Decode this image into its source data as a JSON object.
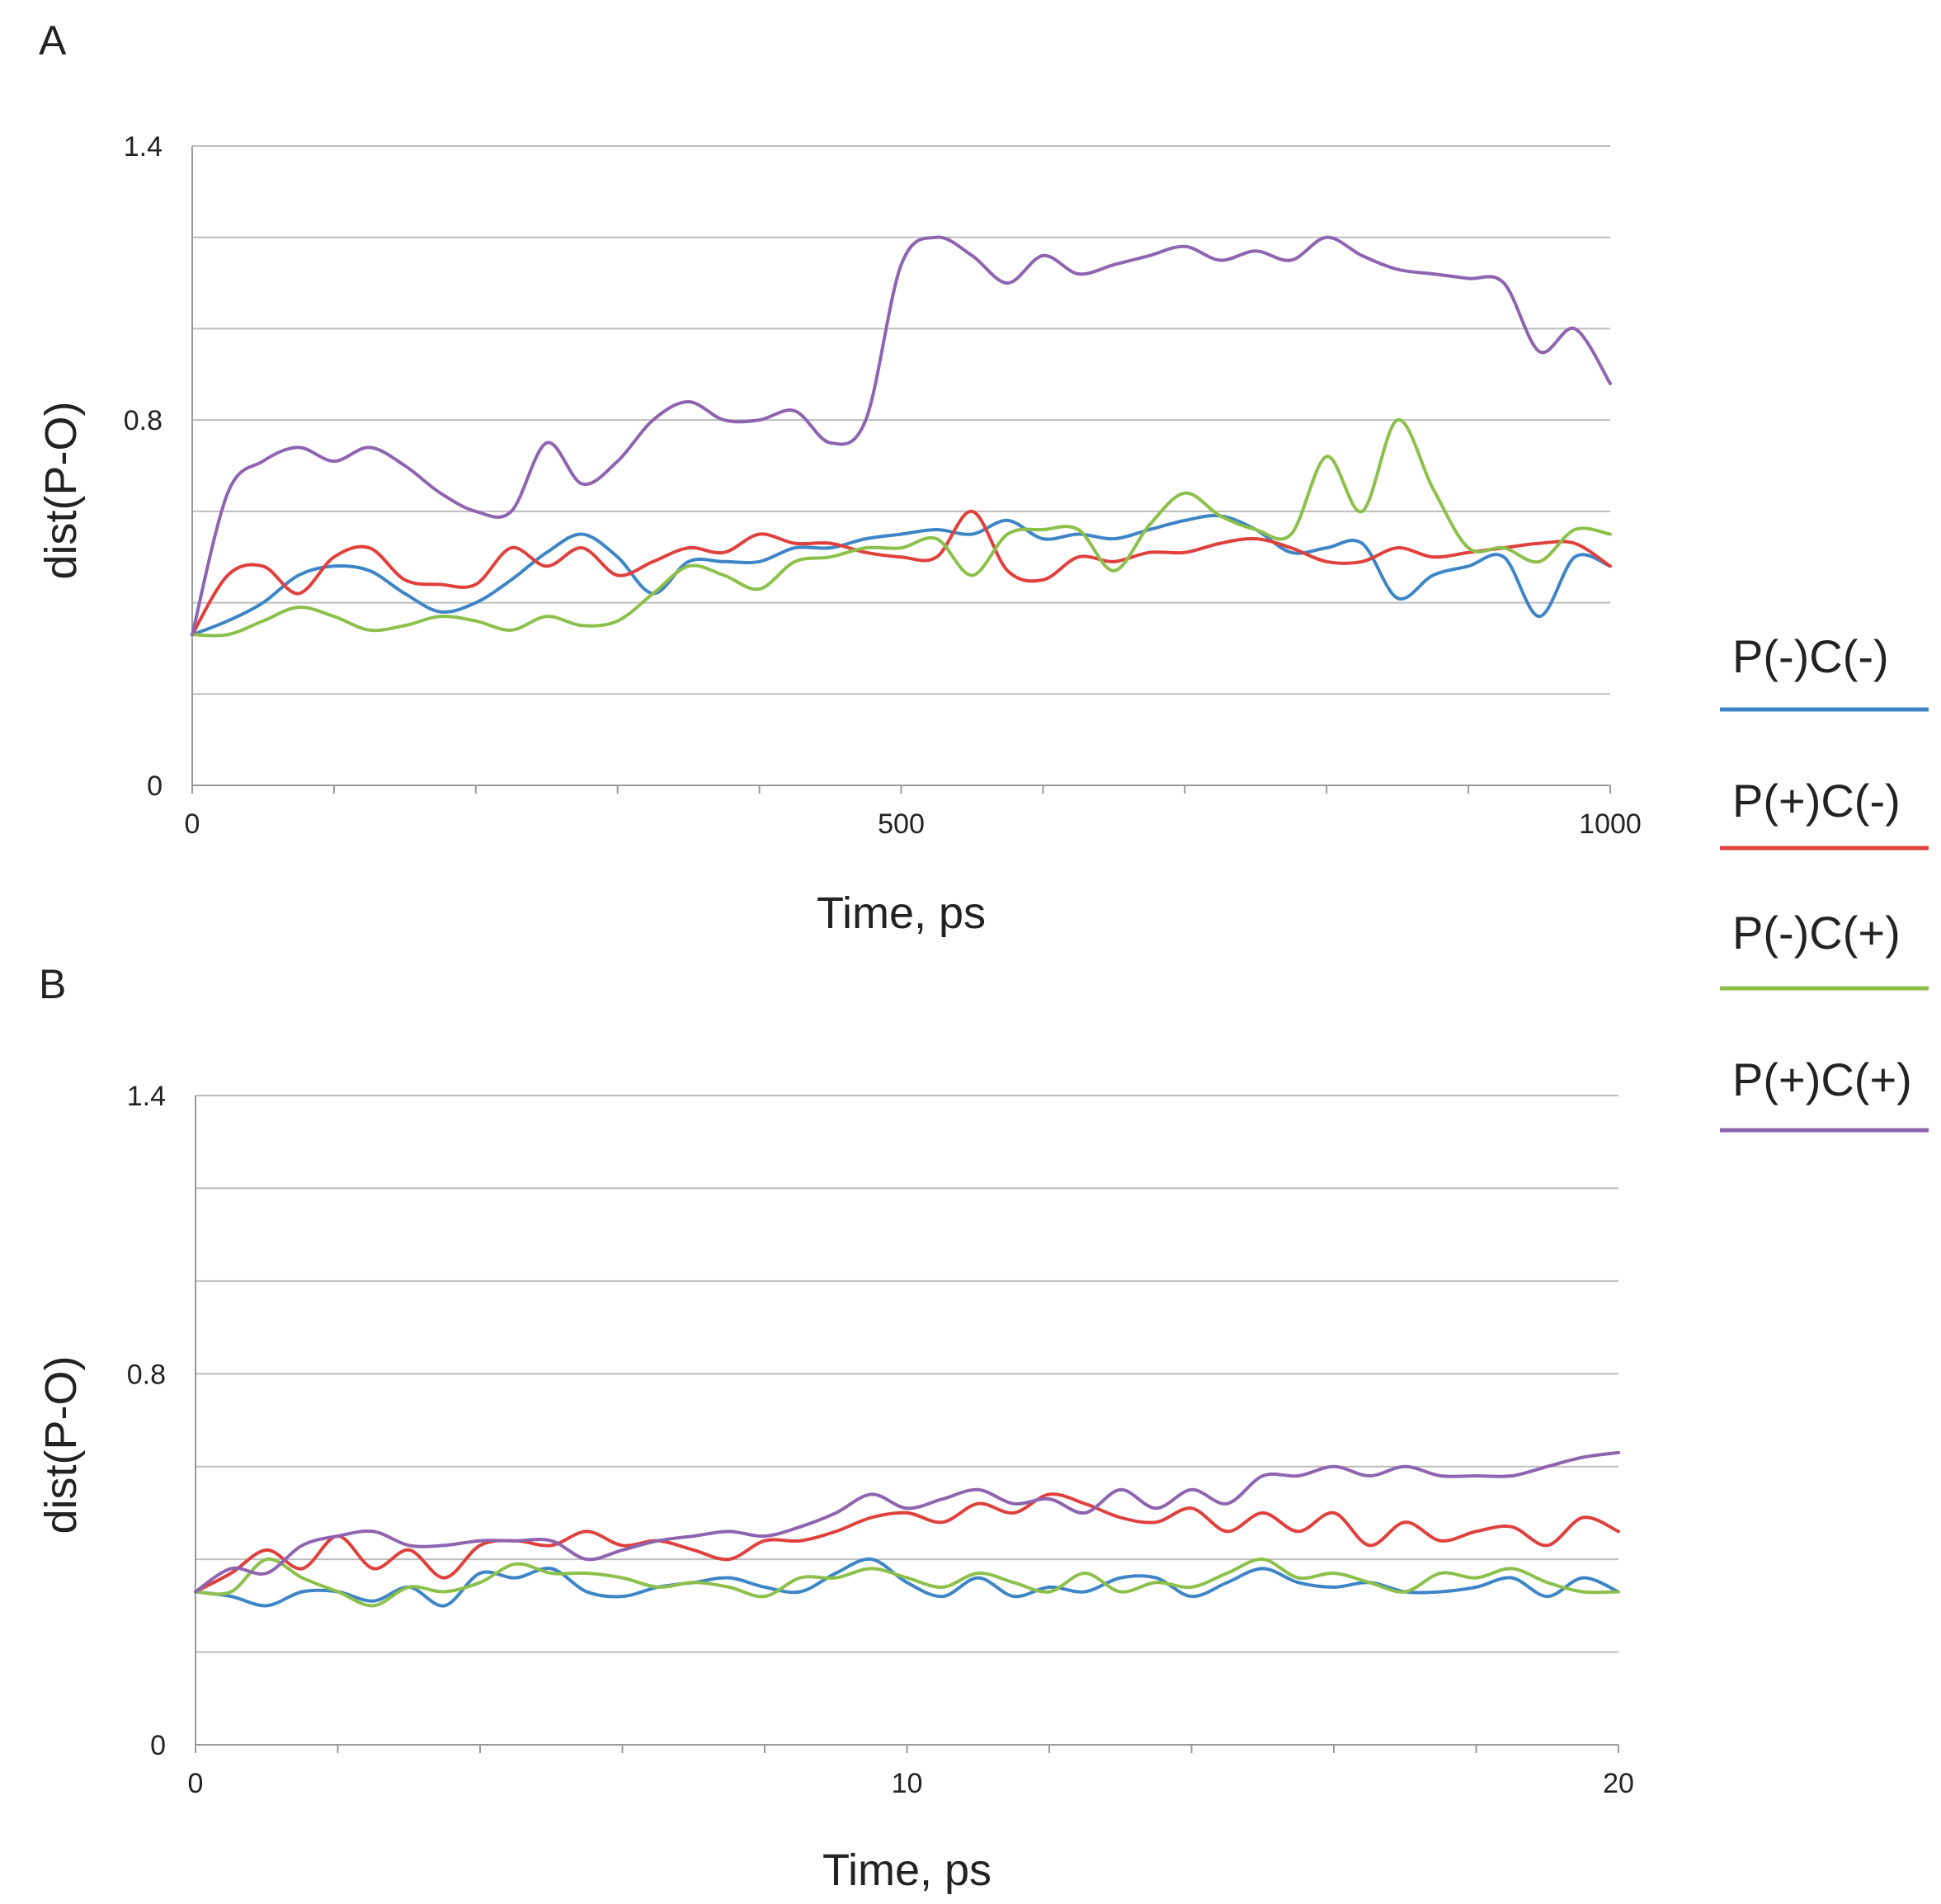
{
  "legend": [
    {
      "label": "P(-)C(-)",
      "color": "#3d85c6"
    },
    {
      "label": "P(+)C(-)",
      "color": "#e0403c"
    },
    {
      "label": "P(-)C(+)",
      "color": "#8cc04a"
    },
    {
      "label": "P(+)C(+)",
      "color": "#8e64b0"
    }
  ],
  "chart_data": [
    {
      "panel": "A",
      "type": "line",
      "xlabel": "Time, ps",
      "ylabel": "dist(P-O)",
      "xlim": [
        0,
        1000
      ],
      "ylim": [
        0,
        1.4
      ],
      "x_ticks": [
        0,
        500,
        1000
      ],
      "y_ticks": [
        "0",
        "0.8",
        "1.4"
      ],
      "y_gridlines": [
        0.2,
        0.4,
        0.6,
        0.8,
        1.0,
        1.2,
        1.4
      ],
      "x_minor_ticks": 10,
      "x": [
        0,
        25,
        50,
        75,
        100,
        125,
        150,
        175,
        200,
        225,
        250,
        275,
        300,
        325,
        350,
        375,
        400,
        425,
        450,
        475,
        500,
        525,
        550,
        575,
        600,
        625,
        650,
        675,
        700,
        725,
        750,
        775,
        800,
        825,
        850,
        875,
        900,
        925,
        950,
        975,
        1000
      ],
      "series": [
        {
          "name": "P(-)C(-)",
          "color": "#3d85c6",
          "values": [
            0.33,
            0.36,
            0.4,
            0.46,
            0.48,
            0.47,
            0.42,
            0.38,
            0.4,
            0.45,
            0.51,
            0.55,
            0.5,
            0.42,
            0.49,
            0.49,
            0.49,
            0.52,
            0.52,
            0.54,
            0.55,
            0.56,
            0.55,
            0.58,
            0.54,
            0.55,
            0.54,
            0.56,
            0.58,
            0.59,
            0.56,
            0.51,
            0.52,
            0.53,
            0.41,
            0.46,
            0.48,
            0.5,
            0.37,
            0.5,
            0.48
          ]
        },
        {
          "name": "P(+)C(-)",
          "color": "#e0403c",
          "values": [
            0.33,
            0.46,
            0.48,
            0.42,
            0.5,
            0.52,
            0.45,
            0.44,
            0.44,
            0.52,
            0.48,
            0.52,
            0.46,
            0.49,
            0.52,
            0.51,
            0.55,
            0.53,
            0.53,
            0.51,
            0.5,
            0.5,
            0.6,
            0.47,
            0.45,
            0.5,
            0.49,
            0.51,
            0.51,
            0.53,
            0.54,
            0.52,
            0.49,
            0.49,
            0.52,
            0.5,
            0.51,
            0.52,
            0.53,
            0.53,
            0.48
          ]
        },
        {
          "name": "P(-)C(+)",
          "color": "#8cc04a",
          "values": [
            0.33,
            0.33,
            0.36,
            0.39,
            0.37,
            0.34,
            0.35,
            0.37,
            0.36,
            0.34,
            0.37,
            0.35,
            0.36,
            0.42,
            0.48,
            0.46,
            0.43,
            0.49,
            0.5,
            0.52,
            0.52,
            0.54,
            0.46,
            0.55,
            0.56,
            0.56,
            0.47,
            0.57,
            0.64,
            0.59,
            0.56,
            0.55,
            0.72,
            0.6,
            0.8,
            0.65,
            0.52,
            0.52,
            0.49,
            0.56,
            0.55
          ]
        },
        {
          "name": "P(+)C(+)",
          "color": "#8e64b0",
          "values": [
            0.33,
            0.64,
            0.71,
            0.74,
            0.71,
            0.74,
            0.7,
            0.64,
            0.6,
            0.6,
            0.75,
            0.66,
            0.71,
            0.8,
            0.84,
            0.8,
            0.8,
            0.82,
            0.75,
            0.8,
            1.14,
            1.2,
            1.16,
            1.1,
            1.16,
            1.12,
            1.14,
            1.16,
            1.18,
            1.15,
            1.17,
            1.15,
            1.2,
            1.16,
            1.13,
            1.12,
            1.11,
            1.1,
            0.95,
            1.0,
            0.88
          ]
        }
      ]
    },
    {
      "panel": "B",
      "type": "line",
      "xlabel": "Time, ps",
      "ylabel": "dist(P-O)",
      "xlim": [
        0,
        20
      ],
      "ylim": [
        0,
        1.4
      ],
      "x_ticks": [
        0,
        10,
        20
      ],
      "y_ticks": [
        "0",
        "0.8",
        "1.4"
      ],
      "y_gridlines": [
        0.2,
        0.4,
        0.6,
        0.8,
        1.0,
        1.2,
        1.4
      ],
      "x_minor_ticks": 10,
      "x": [
        0,
        0.5,
        1,
        1.5,
        2,
        2.5,
        3,
        3.5,
        4,
        4.5,
        5,
        5.5,
        6,
        6.5,
        7,
        7.5,
        8,
        8.5,
        9,
        9.5,
        10,
        10.5,
        11,
        11.5,
        12,
        12.5,
        13,
        13.5,
        14,
        14.5,
        15,
        15.5,
        16,
        16.5,
        17,
        17.5,
        18,
        18.5,
        19,
        19.5,
        20
      ],
      "series": [
        {
          "name": "P(-)C(-)",
          "color": "#3d85c6",
          "values": [
            0.33,
            0.32,
            0.3,
            0.33,
            0.33,
            0.31,
            0.34,
            0.3,
            0.37,
            0.36,
            0.38,
            0.33,
            0.32,
            0.34,
            0.35,
            0.36,
            0.34,
            0.33,
            0.37,
            0.4,
            0.35,
            0.32,
            0.36,
            0.32,
            0.34,
            0.33,
            0.36,
            0.36,
            0.32,
            0.35,
            0.38,
            0.35,
            0.34,
            0.35,
            0.33,
            0.33,
            0.34,
            0.36,
            0.32,
            0.36,
            0.33
          ]
        },
        {
          "name": "P(+)C(-)",
          "color": "#e0403c",
          "values": [
            0.33,
            0.37,
            0.42,
            0.38,
            0.45,
            0.38,
            0.42,
            0.36,
            0.43,
            0.44,
            0.43,
            0.46,
            0.43,
            0.44,
            0.42,
            0.4,
            0.44,
            0.44,
            0.46,
            0.49,
            0.5,
            0.48,
            0.52,
            0.5,
            0.54,
            0.52,
            0.49,
            0.48,
            0.51,
            0.46,
            0.5,
            0.46,
            0.5,
            0.43,
            0.48,
            0.44,
            0.46,
            0.47,
            0.43,
            0.49,
            0.46
          ]
        },
        {
          "name": "P(-)C(+)",
          "color": "#8cc04a",
          "values": [
            0.33,
            0.33,
            0.4,
            0.36,
            0.33,
            0.3,
            0.34,
            0.33,
            0.35,
            0.39,
            0.37,
            0.37,
            0.36,
            0.34,
            0.35,
            0.34,
            0.32,
            0.36,
            0.36,
            0.38,
            0.36,
            0.34,
            0.37,
            0.35,
            0.33,
            0.37,
            0.33,
            0.35,
            0.34,
            0.37,
            0.4,
            0.36,
            0.37,
            0.35,
            0.33,
            0.37,
            0.36,
            0.38,
            0.35,
            0.33,
            0.33
          ]
        },
        {
          "name": "P(+)C(+)",
          "color": "#8e64b0",
          "values": [
            0.33,
            0.38,
            0.37,
            0.43,
            0.45,
            0.46,
            0.43,
            0.43,
            0.44,
            0.44,
            0.44,
            0.4,
            0.42,
            0.44,
            0.45,
            0.46,
            0.45,
            0.47,
            0.5,
            0.54,
            0.51,
            0.53,
            0.55,
            0.52,
            0.53,
            0.5,
            0.55,
            0.51,
            0.55,
            0.52,
            0.58,
            0.58,
            0.6,
            0.58,
            0.6,
            0.58,
            0.58,
            0.58,
            0.6,
            0.62,
            0.63
          ]
        }
      ]
    }
  ]
}
